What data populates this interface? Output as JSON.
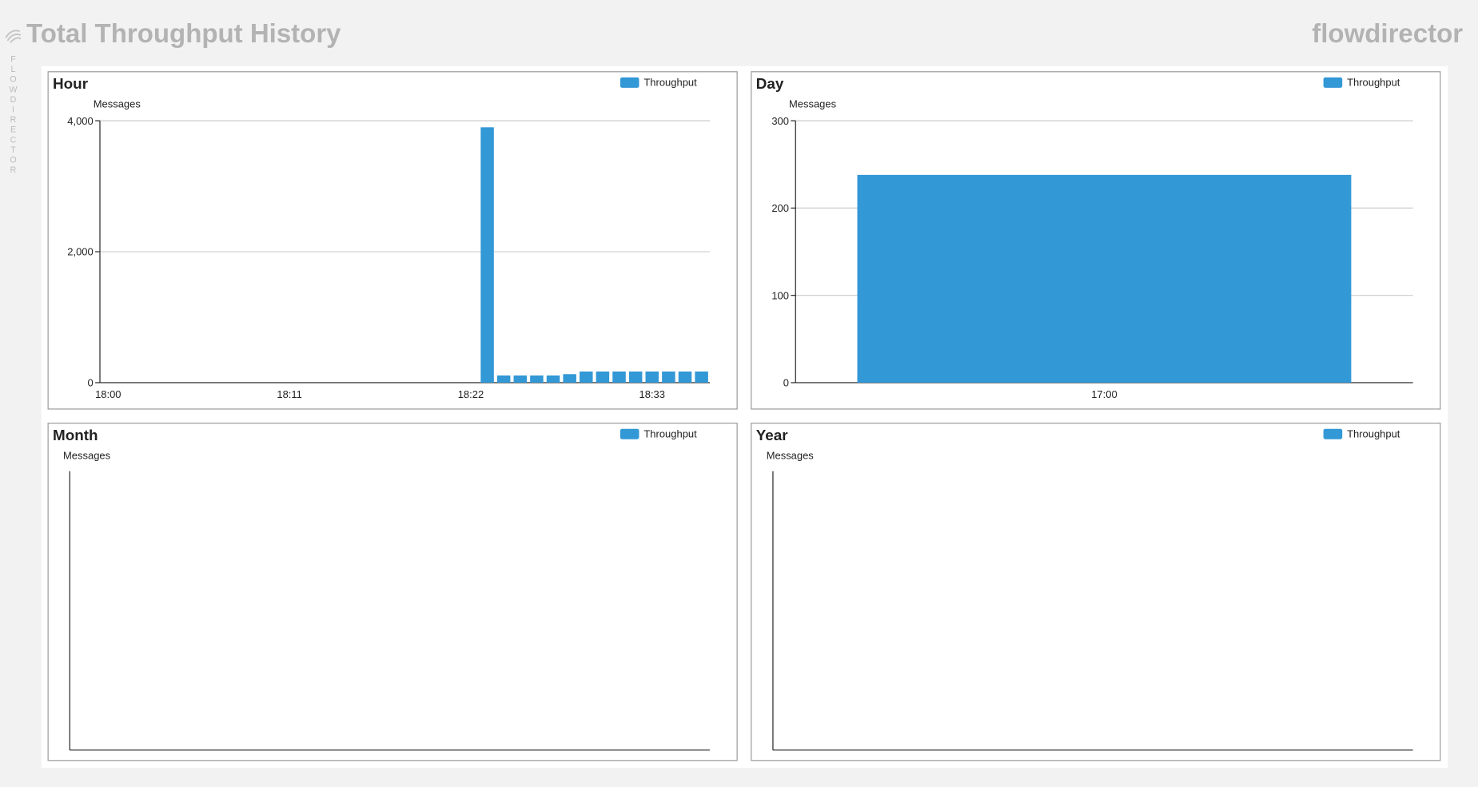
{
  "header": {
    "title": "Total Throughput History",
    "brand": "flowdirector",
    "side_label": "FLOWDIRECTOR"
  },
  "chart_data": [
    {
      "type": "bar",
      "title": "Hour",
      "y_label": "Messages",
      "categories": [
        "18:00",
        null,
        null,
        null,
        null,
        null,
        null,
        null,
        null,
        null,
        null,
        "18:11",
        null,
        null,
        null,
        null,
        null,
        null,
        null,
        null,
        null,
        null,
        "18:22",
        null,
        null,
        null,
        null,
        null,
        null,
        null,
        null,
        null,
        null,
        "18:33",
        null,
        null,
        null
      ],
      "series": [
        {
          "name": "Throughput",
          "color": "#3398d6",
          "values": [
            null,
            null,
            null,
            null,
            null,
            null,
            null,
            null,
            null,
            null,
            null,
            null,
            null,
            null,
            null,
            null,
            null,
            null,
            null,
            null,
            null,
            null,
            null,
            3900,
            110,
            110,
            110,
            110,
            130,
            170,
            170,
            170,
            170,
            170,
            170,
            170,
            170
          ]
        }
      ],
      "ylim": [
        0,
        4000
      ],
      "yticks": [
        0,
        {
          "value": 2000,
          "label": "2,000"
        },
        {
          "value": 4000,
          "label": "4,000"
        }
      ],
      "grid": true
    },
    {
      "type": "bar",
      "title": "Day",
      "y_label": "Messages",
      "categories": [
        "17:00"
      ],
      "series": [
        {
          "name": "Throughput",
          "color": "#3398d6",
          "values": [
            238
          ]
        }
      ],
      "ylim": [
        0,
        300
      ],
      "yticks": [
        0,
        100,
        200,
        300
      ],
      "grid": true
    },
    {
      "type": "bar",
      "title": "Month",
      "y_label": "Messages",
      "categories": [],
      "series": [
        {
          "name": "Throughput",
          "color": "#3398d6",
          "values": []
        }
      ]
    },
    {
      "type": "bar",
      "title": "Year",
      "y_label": "Messages",
      "categories": [],
      "series": [
        {
          "name": "Throughput",
          "color": "#3398d6",
          "values": []
        }
      ]
    }
  ]
}
